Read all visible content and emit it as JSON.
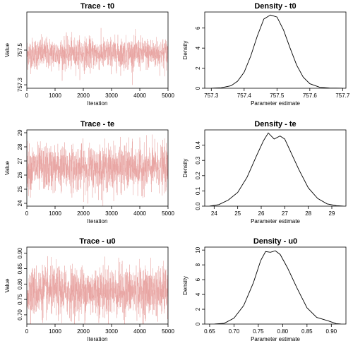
{
  "chart_data": [
    {
      "type": "line",
      "title": "Trace - t0",
      "xlabel": "Iteration",
      "ylabel": "Value",
      "xlim": [
        0,
        5000
      ],
      "ylim": [
        757.28,
        757.72
      ],
      "xticks": [
        0,
        1000,
        2000,
        3000,
        4000,
        5000
      ],
      "yticks": [
        757.3,
        757.5
      ],
      "ytick_labels": [
        "757.3",
        "757.5"
      ],
      "series": [
        {
          "center": 757.48,
          "spread": 0.045,
          "n": 5000
        }
      ],
      "color": "#e8a2a0"
    },
    {
      "type": "line",
      "title": "Density - t0",
      "xlabel": "Parameter estimate",
      "ylabel": "Density",
      "xlim": [
        757.28,
        757.71
      ],
      "ylim": [
        0,
        7.6
      ],
      "xticks": [
        757.3,
        757.4,
        757.5,
        757.6,
        757.7
      ],
      "xtick_labels": [
        "757.3",
        "757.4",
        "757.5",
        "757.6",
        "757.7"
      ],
      "yticks": [
        0,
        2,
        4,
        6
      ],
      "ytick_labels": [
        "0",
        "2",
        "4",
        "6"
      ],
      "series": [
        {
          "x": [
            757.3,
            757.33,
            757.36,
            757.38,
            757.4,
            757.42,
            757.44,
            757.46,
            757.48,
            757.5,
            757.52,
            757.54,
            757.56,
            757.58,
            757.6,
            757.63,
            757.66,
            757.7
          ],
          "y": [
            0,
            0.05,
            0.25,
            0.7,
            1.6,
            3.2,
            5.2,
            6.9,
            7.3,
            7.1,
            5.8,
            4.0,
            2.3,
            1.1,
            0.45,
            0.1,
            0.02,
            0
          ]
        }
      ],
      "color": "#000000"
    },
    {
      "type": "line",
      "title": "Trace - te",
      "xlabel": "Iteration",
      "ylabel": "Value",
      "xlim": [
        0,
        5000
      ],
      "ylim": [
        23.8,
        29.2
      ],
      "xticks": [
        0,
        1000,
        2000,
        3000,
        4000,
        5000
      ],
      "yticks": [
        24,
        25,
        26,
        27,
        28,
        29
      ],
      "ytick_labels": [
        "24",
        "25",
        "26",
        "27",
        "28",
        "29"
      ],
      "series": [
        {
          "center": 26.5,
          "spread": 0.8,
          "n": 5000
        }
      ],
      "color": "#e8a2a0"
    },
    {
      "type": "line",
      "title": "Density - te",
      "xlabel": "Parameter estimate",
      "ylabel": "Density",
      "xlim": [
        23.6,
        29.6
      ],
      "ylim": [
        0,
        0.5
      ],
      "xticks": [
        24,
        25,
        26,
        27,
        28,
        29
      ],
      "xtick_labels": [
        "24",
        "25",
        "26",
        "27",
        "28",
        "29"
      ],
      "yticks": [
        0,
        0.1,
        0.2,
        0.3,
        0.4
      ],
      "ytick_labels": [
        "0.0",
        "0.1",
        "0.2",
        "0.3",
        "0.4"
      ],
      "series": [
        {
          "x": [
            23.8,
            24.2,
            24.6,
            25.0,
            25.4,
            25.8,
            26.1,
            26.3,
            26.55,
            26.8,
            27.0,
            27.3,
            27.6,
            28.0,
            28.4,
            28.8,
            29.2,
            29.5
          ],
          "y": [
            0,
            0.01,
            0.04,
            0.09,
            0.19,
            0.33,
            0.43,
            0.48,
            0.44,
            0.46,
            0.44,
            0.34,
            0.24,
            0.12,
            0.05,
            0.015,
            0.003,
            0
          ]
        }
      ],
      "color": "#000000"
    },
    {
      "type": "line",
      "title": "Trace - u0",
      "xlabel": "Iteration",
      "ylabel": "Value",
      "xlim": [
        0,
        5000
      ],
      "ylim": [
        0.67,
        0.92
      ],
      "xticks": [
        0,
        1000,
        2000,
        3000,
        4000,
        5000
      ],
      "yticks": [
        0.7,
        0.75,
        0.8,
        0.85,
        0.9
      ],
      "ytick_labels": [
        "0.70",
        "0.75",
        "0.80",
        "0.85",
        "0.90"
      ],
      "series": [
        {
          "center": 0.776,
          "spread": 0.04,
          "n": 5000
        }
      ],
      "color": "#e8a2a0"
    },
    {
      "type": "line",
      "title": "Density - u0",
      "xlabel": "Parameter estimate",
      "ylabel": "Density",
      "xlim": [
        0.64,
        0.93
      ],
      "ylim": [
        0,
        10.4
      ],
      "xticks": [
        0.65,
        0.7,
        0.75,
        0.8,
        0.85,
        0.9
      ],
      "xtick_labels": [
        "0.65",
        "0.70",
        "0.75",
        "0.80",
        "0.85",
        "0.90"
      ],
      "yticks": [
        0,
        2,
        4,
        6,
        8,
        10
      ],
      "ytick_labels": [
        "0",
        "2",
        "4",
        "6",
        "8",
        "10"
      ],
      "series": [
        {
          "x": [
            0.66,
            0.68,
            0.7,
            0.72,
            0.74,
            0.755,
            0.765,
            0.775,
            0.785,
            0.795,
            0.81,
            0.83,
            0.85,
            0.87,
            0.885,
            0.895,
            0.91,
            0.92
          ],
          "y": [
            0,
            0.1,
            0.8,
            2.5,
            5.6,
            8.6,
            9.8,
            9.7,
            9.9,
            9.4,
            7.6,
            4.8,
            2.2,
            0.9,
            0.6,
            0.4,
            0.05,
            0
          ]
        }
      ],
      "color": "#000000"
    }
  ]
}
